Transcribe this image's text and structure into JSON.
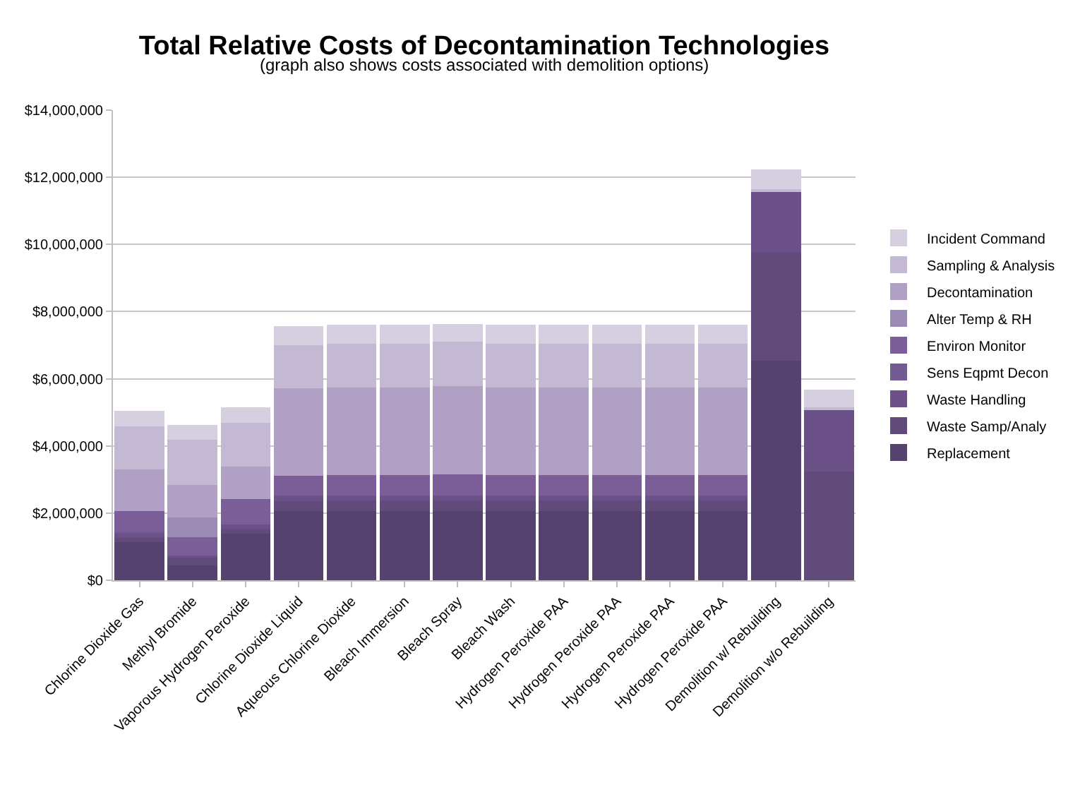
{
  "chart_data": {
    "type": "bar",
    "stacked": true,
    "title": "Total Relative Costs of Decontamination Technologies",
    "subtitle": "(graph also shows costs associated with demolition options)",
    "categories": [
      "Chlorine Dioxide Gas",
      "Methyl Bromide",
      "Vaporous Hydrogen Peroxide",
      "Chlorine Dioxide Liquid",
      "Aqueous Chlorine Dioxide",
      "Bleach Immersion",
      "Bleach Spray",
      "Bleach Wash",
      "Hydrogen Peroxide PAA",
      "Hydrogen Peroxide PAA",
      "Hydrogen Peroxide PAA",
      "Hydrogen Peroxide PAA",
      "Demolition w/ Rebuilding",
      "Demolition w/o Rebuilding"
    ],
    "series": [
      {
        "name": "Replacement",
        "color": "#56426e",
        "values": [
          1130000,
          450000,
          1390000,
          2070000,
          2070000,
          2070000,
          2070000,
          2070000,
          2070000,
          2070000,
          2070000,
          2070000,
          6530000,
          0
        ]
      },
      {
        "name": "Waste Samp/Analy",
        "color": "#614b7a",
        "values": [
          140000,
          230000,
          140000,
          280000,
          310000,
          310000,
          310000,
          310000,
          310000,
          310000,
          310000,
          310000,
          3240000,
          3230000
        ]
      },
      {
        "name": "Waste Handling",
        "color": "#6b5188",
        "values": [
          130000,
          50000,
          140000,
          170000,
          150000,
          150000,
          150000,
          150000,
          150000,
          150000,
          150000,
          150000,
          1800000,
          1840000
        ]
      },
      {
        "name": "Sens Eqpmt Decon",
        "color": "#735a92",
        "values": [
          60000,
          0,
          0,
          0,
          0,
          0,
          0,
          0,
          0,
          0,
          0,
          0,
          0,
          0
        ]
      },
      {
        "name": "Environ Monitor",
        "color": "#7b5d98",
        "values": [
          590000,
          560000,
          740000,
          600000,
          600000,
          600000,
          620000,
          600000,
          600000,
          600000,
          600000,
          600000,
          0,
          0
        ]
      },
      {
        "name": "Alter Temp & RH",
        "color": "#9c8bb4",
        "values": [
          0,
          580000,
          0,
          0,
          0,
          0,
          0,
          0,
          0,
          0,
          0,
          0,
          0,
          0
        ]
      },
      {
        "name": "Decontamination",
        "color": "#b0a1c4",
        "values": [
          1250000,
          970000,
          970000,
          2600000,
          2600000,
          2600000,
          2640000,
          2600000,
          2600000,
          2600000,
          2600000,
          2600000,
          0,
          0
        ]
      },
      {
        "name": "Sampling & Analysis",
        "color": "#c3b9d3",
        "values": [
          1290000,
          1340000,
          1300000,
          1290000,
          1310000,
          1310000,
          1310000,
          1310000,
          1310000,
          1310000,
          1310000,
          1310000,
          80000,
          80000
        ]
      },
      {
        "name": "Incident Command",
        "color": "#d6cfe0",
        "values": [
          460000,
          440000,
          460000,
          550000,
          560000,
          560000,
          530000,
          560000,
          560000,
          560000,
          560000,
          560000,
          580000,
          530000
        ]
      }
    ],
    "ylim": [
      0,
      14000000
    ],
    "yticks": [
      {
        "value": 0,
        "label": "$0"
      },
      {
        "value": 2000000,
        "label": "$2,000,000"
      },
      {
        "value": 4000000,
        "label": "$4,000,000"
      },
      {
        "value": 6000000,
        "label": "$6,000,000"
      },
      {
        "value": 8000000,
        "label": "$8,000,000"
      },
      {
        "value": 10000000,
        "label": "$10,000,000"
      },
      {
        "value": 12000000,
        "label": "$12,000,000"
      },
      {
        "value": 14000000,
        "label": "$14,000,000"
      }
    ],
    "grid": "y",
    "legend": "right"
  }
}
